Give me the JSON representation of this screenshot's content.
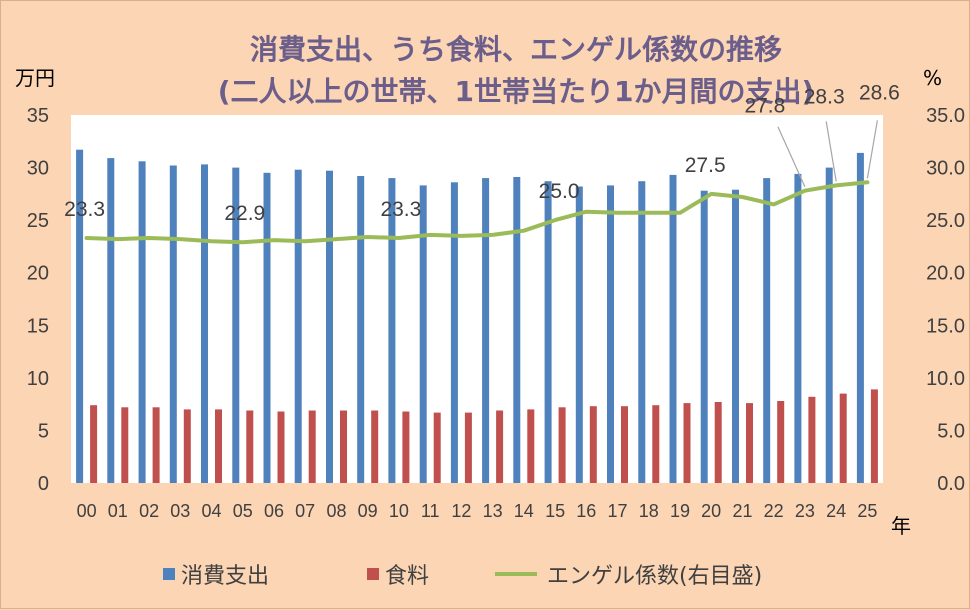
{
  "chart_data": {
    "type": "bar",
    "title": "消費支出、うち食料、エンゲル係数の推移",
    "subtitle": "(二人以上の世帯、1世帯当たり1か月間の支出)",
    "y_unit_left": "万円",
    "y_unit_right": "%",
    "x_unit": "年",
    "categories": [
      "00",
      "01",
      "02",
      "03",
      "04",
      "05",
      "06",
      "07",
      "08",
      "09",
      "10",
      "11",
      "12",
      "13",
      "14",
      "15",
      "16",
      "17",
      "18",
      "19",
      "20",
      "21",
      "22",
      "23",
      "24",
      "25"
    ],
    "ylim_left": [
      0,
      35
    ],
    "ylim_right": [
      0,
      35
    ],
    "yticks_left": [
      "0",
      "5",
      "10",
      "15",
      "20",
      "25",
      "30",
      "35"
    ],
    "yticks_right": [
      "0.0",
      "5.0",
      "10.0",
      "15.0",
      "20.0",
      "25.0",
      "30.0",
      "35.0"
    ],
    "grid": false,
    "legend_position": "bottom",
    "series": [
      {
        "name": "消費支出",
        "type": "bar",
        "axis": "left",
        "color": "#4f81bd",
        "values": [
          31.7,
          30.9,
          30.6,
          30.2,
          30.3,
          30.0,
          29.5,
          29.8,
          29.7,
          29.2,
          29.0,
          28.3,
          28.6,
          29.0,
          29.1,
          28.7,
          28.2,
          28.3,
          28.7,
          29.3,
          27.8,
          27.9,
          29.0,
          29.4,
          30.0,
          31.4
        ]
      },
      {
        "name": "食料",
        "type": "bar",
        "axis": "left",
        "color": "#c0504d",
        "values": [
          7.4,
          7.2,
          7.2,
          7.0,
          7.0,
          6.9,
          6.8,
          6.9,
          6.9,
          6.9,
          6.8,
          6.7,
          6.7,
          6.9,
          7.0,
          7.2,
          7.3,
          7.3,
          7.4,
          7.6,
          7.7,
          7.6,
          7.8,
          8.2,
          8.5,
          8.9
        ]
      },
      {
        "name": "エンゲル係数(右目盛)",
        "type": "line",
        "axis": "right",
        "color": "#9bbb59",
        "values": [
          23.3,
          23.2,
          23.3,
          23.2,
          23.0,
          22.9,
          23.1,
          23.0,
          23.2,
          23.4,
          23.3,
          23.6,
          23.5,
          23.6,
          24.0,
          25.0,
          25.8,
          25.7,
          25.7,
          25.7,
          27.5,
          27.2,
          26.5,
          27.8,
          28.3,
          28.6
        ]
      }
    ],
    "data_labels": [
      {
        "series": "エンゲル係数(右目盛)",
        "category": "00",
        "text": "23.3"
      },
      {
        "series": "エンゲル係数(右目盛)",
        "category": "05",
        "text": "22.9"
      },
      {
        "series": "エンゲル係数(右目盛)",
        "category": "10",
        "text": "23.3"
      },
      {
        "series": "エンゲル係数(右目盛)",
        "category": "15",
        "text": "25.0"
      },
      {
        "series": "エンゲル係数(右目盛)",
        "category": "20",
        "text": "27.5"
      },
      {
        "series": "エンゲル係数(右目盛)",
        "category": "23",
        "text": "27.8"
      },
      {
        "series": "エンゲル係数(右目盛)",
        "category": "24",
        "text": "28.3"
      },
      {
        "series": "エンゲル係数(右目盛)",
        "category": "25",
        "text": "28.6"
      }
    ]
  }
}
